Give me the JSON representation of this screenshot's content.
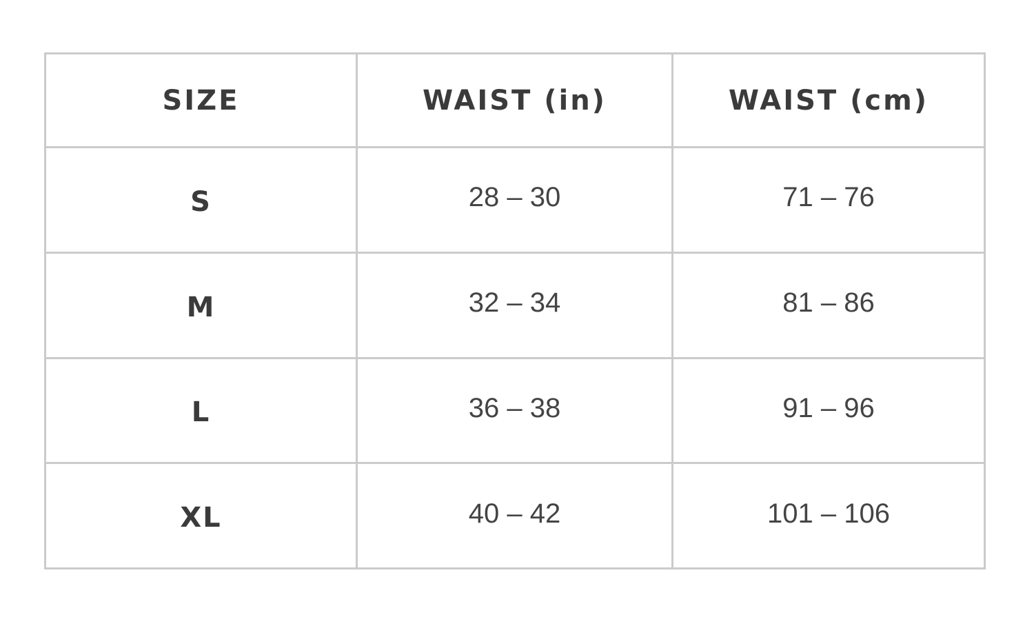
{
  "table": {
    "headers": [
      "SIZE",
      "WAIST (in)",
      "WAIST (cm)"
    ],
    "rows": [
      [
        "S",
        "28 – 30",
        "71 – 76"
      ],
      [
        "M",
        "32 – 34",
        "81 – 86"
      ],
      [
        "L",
        "36 – 38",
        "91 – 96"
      ],
      [
        "XL",
        "40 – 42",
        "101 – 106"
      ]
    ]
  }
}
